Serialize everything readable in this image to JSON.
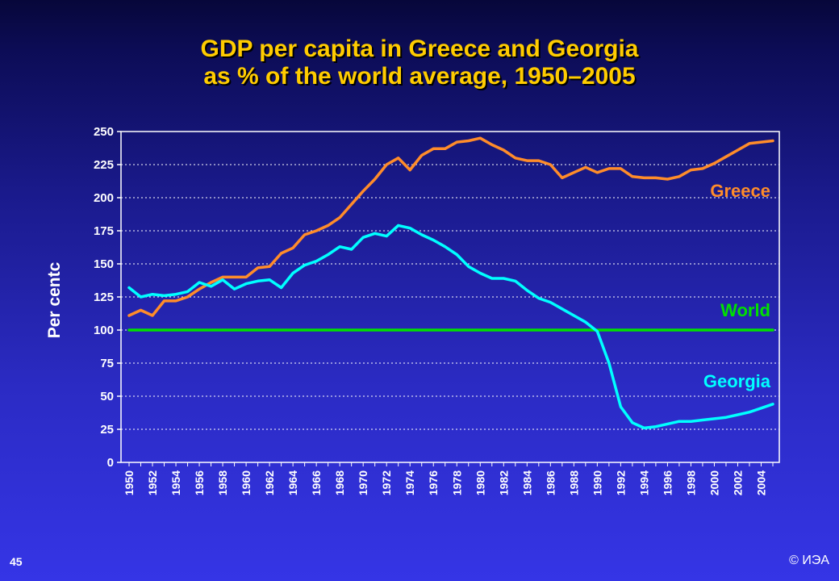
{
  "slide": {
    "title_line1": "GDP per capita in Greece and Georgia",
    "title_line2": "as % of the world average, 1950–2005",
    "page_number": "45",
    "copyright": "© ИЭА"
  },
  "colors": {
    "greece": "#ff8c2a",
    "georgia": "#00ffff",
    "world": "#00e000",
    "title": "#ffcc00",
    "axis_text": "#ffffff"
  },
  "chart_data": {
    "type": "line",
    "title": "GDP per capita in Greece and Georgia as % of the world average, 1950–2005",
    "xlabel": "",
    "ylabel": "Per centc",
    "ylim": [
      0,
      250
    ],
    "yticks": [
      0,
      25,
      50,
      75,
      100,
      125,
      150,
      175,
      200,
      225,
      250
    ],
    "xlim": [
      1950,
      2005
    ],
    "xticks": [
      1950,
      1952,
      1954,
      1956,
      1958,
      1960,
      1962,
      1964,
      1966,
      1968,
      1970,
      1972,
      1974,
      1976,
      1978,
      1980,
      1982,
      1984,
      1986,
      1988,
      1990,
      1992,
      1994,
      1996,
      1998,
      2000,
      2002,
      2004
    ],
    "grid": true,
    "legend": "inline labels at right end of lines",
    "x": [
      1950,
      1951,
      1952,
      1953,
      1954,
      1955,
      1956,
      1957,
      1958,
      1959,
      1960,
      1961,
      1962,
      1963,
      1964,
      1965,
      1966,
      1967,
      1968,
      1969,
      1970,
      1971,
      1972,
      1973,
      1974,
      1975,
      1976,
      1977,
      1978,
      1979,
      1980,
      1981,
      1982,
      1983,
      1984,
      1985,
      1986,
      1987,
      1988,
      1989,
      1990,
      1991,
      1992,
      1993,
      1994,
      1995,
      1996,
      1997,
      1998,
      1999,
      2000,
      2001,
      2002,
      2003,
      2004,
      2005
    ],
    "series": [
      {
        "name": "Greece",
        "color": "#ff8c2a",
        "values": [
          111,
          115,
          111,
          122,
          122,
          125,
          131,
          136,
          140,
          140,
          140,
          147,
          148,
          158,
          162,
          172,
          175,
          179,
          185,
          195,
          205,
          214,
          225,
          230,
          221,
          232,
          237,
          237,
          242,
          243,
          245,
          240,
          236,
          230,
          228,
          228,
          225,
          215,
          219,
          223,
          219,
          222,
          222,
          216,
          215,
          215,
          214,
          216,
          221,
          222,
          226,
          231,
          236,
          241,
          242,
          243
        ]
      },
      {
        "name": "World",
        "color": "#00e000",
        "values": [
          100,
          100,
          100,
          100,
          100,
          100,
          100,
          100,
          100,
          100,
          100,
          100,
          100,
          100,
          100,
          100,
          100,
          100,
          100,
          100,
          100,
          100,
          100,
          100,
          100,
          100,
          100,
          100,
          100,
          100,
          100,
          100,
          100,
          100,
          100,
          100,
          100,
          100,
          100,
          100,
          100,
          100,
          100,
          100,
          100,
          100,
          100,
          100,
          100,
          100,
          100,
          100,
          100,
          100,
          100,
          100
        ]
      },
      {
        "name": "Georgia",
        "color": "#00ffff",
        "values": [
          132,
          125,
          127,
          126,
          127,
          129,
          136,
          133,
          138,
          131,
          135,
          137,
          138,
          132,
          143,
          149,
          152,
          157,
          163,
          161,
          170,
          173,
          171,
          179,
          177,
          172,
          168,
          163,
          157,
          148,
          143,
          139,
          139,
          137,
          130,
          124,
          121,
          116,
          111,
          106,
          99,
          75,
          42,
          30,
          26,
          27,
          29,
          31,
          31,
          32,
          33,
          34,
          36,
          38,
          41,
          44
        ]
      }
    ]
  }
}
